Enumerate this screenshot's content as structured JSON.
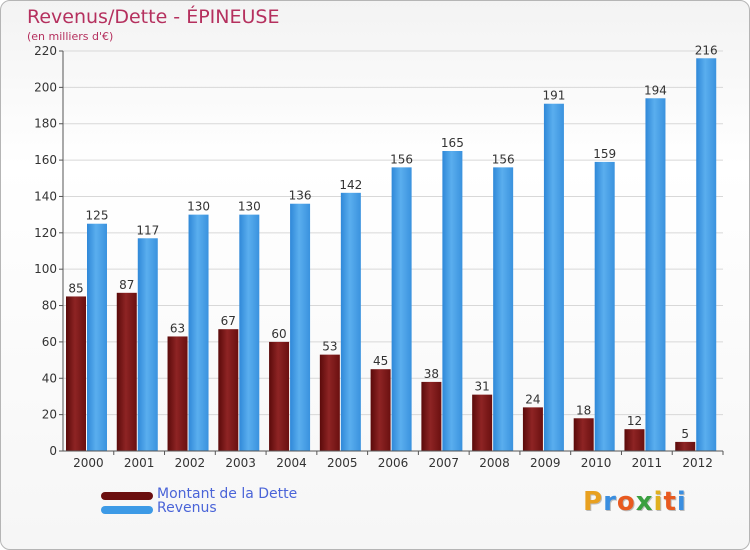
{
  "header": {
    "title": "Revenus/Dette - ÉPINEUSE",
    "subtitle": "(en milliers d'€)"
  },
  "chart_data": {
    "type": "bar",
    "title": "Revenus/Dette - ÉPINEUSE",
    "ylabel": "(en milliers d'€)",
    "categories": [
      "2000",
      "2001",
      "2002",
      "2003",
      "2004",
      "2005",
      "2006",
      "2007",
      "2008",
      "2009",
      "2010",
      "2011",
      "2012"
    ],
    "series": [
      {
        "name": "Montant de la Dette",
        "color": "#8b1e1e",
        "values": [
          85,
          87,
          63,
          67,
          60,
          53,
          45,
          38,
          31,
          24,
          18,
          12,
          5
        ]
      },
      {
        "name": "Revenus",
        "color": "#3d9ae6",
        "values": [
          125,
          117,
          130,
          130,
          136,
          142,
          156,
          165,
          156,
          191,
          159,
          194,
          216
        ]
      }
    ],
    "ylim": [
      0,
      220
    ],
    "yticks": [
      0,
      20,
      40,
      60,
      80,
      100,
      120,
      140,
      160,
      180,
      200,
      220
    ],
    "grid": true,
    "legend": "bottom-left"
  },
  "legend": {
    "items": [
      {
        "label": "Montant de la Dette",
        "color": "#6b0f0f"
      },
      {
        "label": "Revenus",
        "color": "#3d9ae6"
      }
    ]
  },
  "logo": {
    "text": "Proxiti",
    "letters": [
      "P",
      "r",
      "o",
      "x",
      "i",
      "t",
      "i"
    ],
    "colors": [
      "#e8a020",
      "#3a8ee0",
      "#e85a20",
      "#3aa040",
      "#e0b020",
      "#e85a20",
      "#3a8ee0"
    ]
  }
}
